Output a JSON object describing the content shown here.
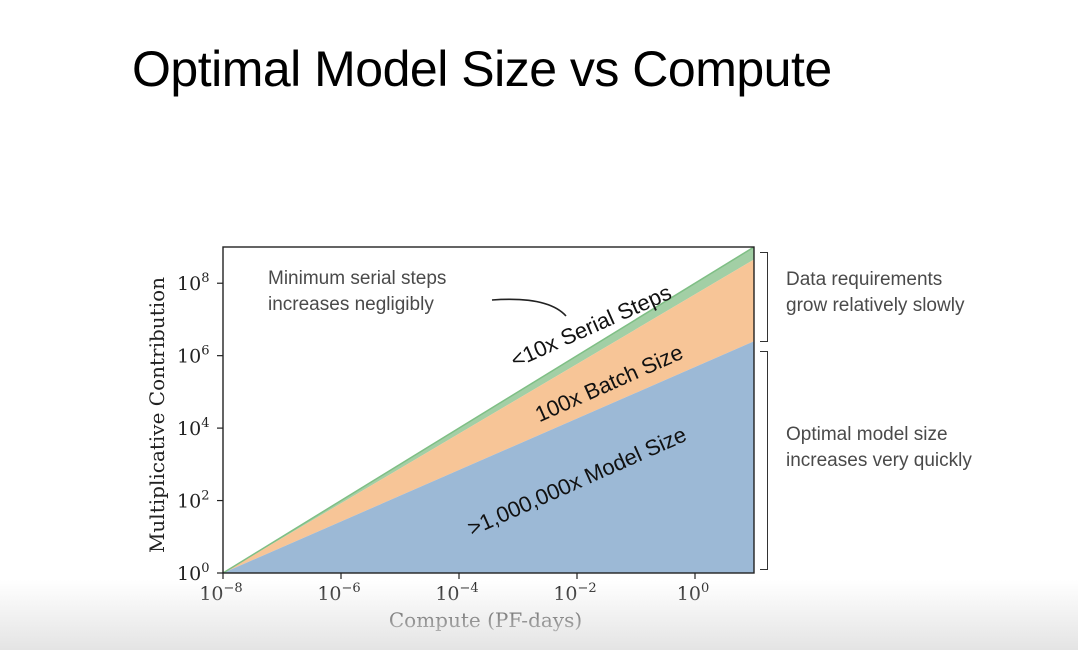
{
  "slide": {
    "title": "Optimal Model Size vs Compute"
  },
  "annotations": {
    "serial_note": [
      "Minimum serial steps",
      "increases negligibly"
    ],
    "data_note": [
      "Data requirements",
      "grow relatively slowly"
    ],
    "model_note": [
      "Optimal model size",
      "increases very quickly"
    ]
  },
  "colors": {
    "model": "#9cb9d6",
    "batch": "#f7c597",
    "serial": "#a2cfa5"
  },
  "chart_data": {
    "type": "area",
    "xlabel": "Compute (PF-days)",
    "ylabel": "Multiplicative Contribution",
    "xscale": "log",
    "yscale": "log",
    "xlim": [
      1e-08,
      10
    ],
    "ylim": [
      1,
      1000000000.0
    ],
    "xticks": [
      {
        "value": 1e-08,
        "base": "10",
        "exp": "−8"
      },
      {
        "value": 1e-06,
        "base": "10",
        "exp": "−6"
      },
      {
        "value": 0.0001,
        "base": "10",
        "exp": "−4"
      },
      {
        "value": 0.01,
        "base": "10",
        "exp": "−2"
      },
      {
        "value": 1,
        "base": "10",
        "exp": "0"
      }
    ],
    "yticks": [
      {
        "value": 1,
        "base": "10",
        "exp": "0"
      },
      {
        "value": 100.0,
        "base": "10",
        "exp": "2"
      },
      {
        "value": 10000.0,
        "base": "10",
        "exp": "4"
      },
      {
        "value": 1000000.0,
        "base": "10",
        "exp": "6"
      },
      {
        "value": 100000000.0,
        "base": "10",
        "exp": "8"
      }
    ],
    "x": [
      1e-08,
      10
    ],
    "stacked": true,
    "series": [
      {
        "name": ">1,000,000x Model Size",
        "values": [
          1,
          2500000.0
        ]
      },
      {
        "name": "100x Batch Size",
        "values": [
          1,
          450000000.0
        ]
      },
      {
        "name": "<10x Serial Steps",
        "values": [
          1,
          1000000000.0
        ]
      }
    ],
    "grid": false
  }
}
